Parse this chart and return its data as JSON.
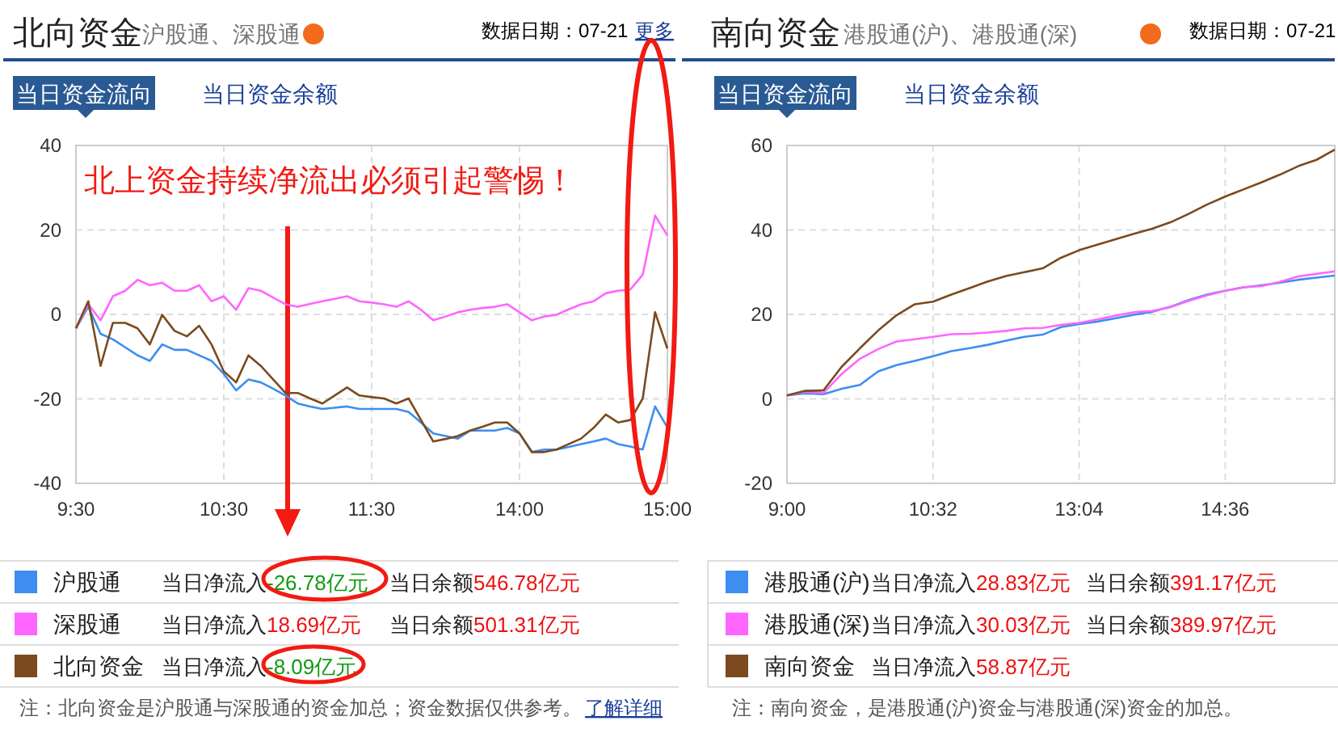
{
  "chart_data": [
    {
      "type": "line",
      "title": "北向资金",
      "subtitle": "沪股通、深股通",
      "annotations": [
        "数据日期：07-21",
        "更多",
        "当日资金流向",
        "当日资金余额",
        "北上资金持续净流出必须引起警惕！",
        "当日净流入-26.78亿元",
        "当日余额546.78亿元",
        "当日净流入18.69亿元",
        "当日余额501.31亿元",
        "当日净流入-8.09亿元",
        "注：北向资金是沪股通与深股通的资金加总；资金数据仅供参考。",
        "了解详细"
      ],
      "categories": [
        "9:30",
        null,
        null,
        null,
        null,
        null,
        null,
        null,
        null,
        null,
        null,
        null,
        "10:30",
        null,
        null,
        null,
        null,
        null,
        null,
        null,
        null,
        null,
        null,
        null,
        "11:30",
        null,
        null,
        null,
        null,
        null,
        null,
        null,
        null,
        null,
        null,
        null,
        "14:00",
        null,
        null,
        null,
        null,
        null,
        null,
        null,
        null,
        null,
        null,
        null,
        "15:00"
      ],
      "series": [
        {
          "name": "沪股通",
          "color": "#3d8ef0",
          "values": [
            -3.3,
            1.8,
            -4.6,
            -5.9,
            -7.8,
            -9.7,
            -11,
            -7.1,
            -8.4,
            -8.4,
            -9.7,
            -11,
            -14.1,
            -18,
            -15.4,
            -16.1,
            -17.6,
            -19.2,
            -21.1,
            -21.8,
            -22.4,
            -22.1,
            -21.8,
            -22.4,
            -22.4,
            -22.4,
            -22.4,
            -23.1,
            -25.6,
            -28.2,
            -28.8,
            -29.4,
            -27.5,
            -27.5,
            -27.5,
            -26.9,
            -28.2,
            -32.6,
            -32,
            -32,
            -31.4,
            -30.7,
            -30.1,
            -29.4,
            -30.7,
            -31.3,
            -32,
            -21.8,
            -26.78
          ]
        },
        {
          "name": "深股通",
          "color": "#ff66ff",
          "values": [
            -3.3,
            2.4,
            -1.4,
            4.3,
            5.6,
            8.2,
            6.9,
            7.5,
            5.6,
            5.6,
            6.9,
            3.1,
            4.3,
            1.1,
            6.2,
            5.6,
            4,
            2.4,
            1.8,
            2.5,
            3.1,
            3.7,
            4.3,
            3.1,
            2.8,
            2.4,
            1.8,
            3.1,
            1.1,
            -1.4,
            -0.5,
            0.5,
            1.1,
            1.5,
            1.8,
            2.4,
            0.5,
            -1.4,
            -0.5,
            -0.1,
            1.2,
            2.4,
            3.1,
            5,
            5.6,
            5.9,
            9.4,
            23.4,
            18.69
          ]
        },
        {
          "name": "北向资金",
          "color": "#7b4a1e",
          "values": [
            -3.3,
            3.1,
            -12.2,
            -2,
            -2,
            -3.3,
            -7.1,
            -0.1,
            -3.9,
            -5.2,
            -2.7,
            -7.1,
            -13.5,
            -16.1,
            -9.7,
            -12.2,
            -15.4,
            -18.6,
            -18.6,
            -19.9,
            -21.1,
            -19.2,
            -17.3,
            -19.2,
            -19.6,
            -19.9,
            -21.1,
            -19.9,
            -25,
            -30.1,
            -29.5,
            -28.8,
            -27.5,
            -26.6,
            -25.6,
            -25.6,
            -28.2,
            -32.6,
            -32.6,
            -32,
            -30.7,
            -29.4,
            -26.9,
            -23.7,
            -25.6,
            -25,
            -19.9,
            0.5,
            -8.09
          ]
        }
      ],
      "ylim": [
        -40,
        40
      ],
      "yticks": [
        -40,
        -20,
        0,
        20,
        40
      ],
      "grid": true,
      "legend": "bottom"
    },
    {
      "type": "line",
      "title": "南向资金",
      "subtitle": "港股通(沪)、港股通(深)",
      "annotations": [
        "数据日期：07-21",
        "当日资金流向",
        "当日资金余额",
        "当日净流入28.83亿元",
        "当日余额391.17亿元",
        "当日净流入30.03亿元",
        "当日余额389.97亿元",
        "当日净流入58.87亿元",
        "注：南向资金，是港股通(沪)资金与港股通(深)资金的加总。"
      ],
      "categories": [
        "9:00",
        null,
        null,
        null,
        null,
        null,
        null,
        null,
        "10:32",
        null,
        null,
        null,
        null,
        null,
        null,
        null,
        "13:04",
        null,
        null,
        null,
        null,
        null,
        null,
        null,
        "14:36",
        null,
        null,
        null,
        null,
        null,
        null
      ],
      "series": [
        {
          "name": "港股通(沪)",
          "color": "#3d8ef0",
          "values": [
            0.8,
            1.3,
            1.1,
            2.4,
            3.3,
            6.5,
            8,
            9,
            10.1,
            11.3,
            12,
            12.8,
            13.8,
            14.7,
            15.2,
            17,
            17.7,
            18.3,
            19.1,
            19.9,
            20.6,
            21.8,
            23.4,
            24.7,
            25.6,
            26.4,
            26.9,
            27.5,
            28.2,
            28.7,
            29.2
          ]
        },
        {
          "name": "港股通(深)",
          "color": "#ff66ff",
          "values": [
            0.8,
            1.7,
            1.4,
            5.9,
            9.5,
            11.8,
            13.6,
            14.1,
            14.7,
            15.3,
            15.4,
            15.7,
            16.1,
            16.7,
            16.8,
            17.5,
            18,
            18.8,
            19.7,
            20.5,
            20.8,
            21.7,
            23.2,
            24.5,
            25.6,
            26.4,
            26.7,
            27.7,
            29,
            29.6,
            30.2
          ]
        },
        {
          "name": "南向资金",
          "color": "#7b4a1e",
          "values": [
            0.8,
            1.9,
            2,
            7.6,
            12,
            16.2,
            19.8,
            22.4,
            23,
            24.7,
            26.2,
            27.8,
            29.1,
            30,
            30.9,
            33.4,
            35.2,
            36.5,
            37.8,
            39.1,
            40.3,
            41.8,
            43.8,
            46,
            47.9,
            49.6,
            51.3,
            53.1,
            55.1,
            56.6,
            59
          ]
        }
      ],
      "ylim": [
        -20,
        60
      ],
      "yticks": [
        -20,
        0,
        20,
        40,
        60
      ],
      "grid": true,
      "legend": "bottom"
    }
  ]
}
